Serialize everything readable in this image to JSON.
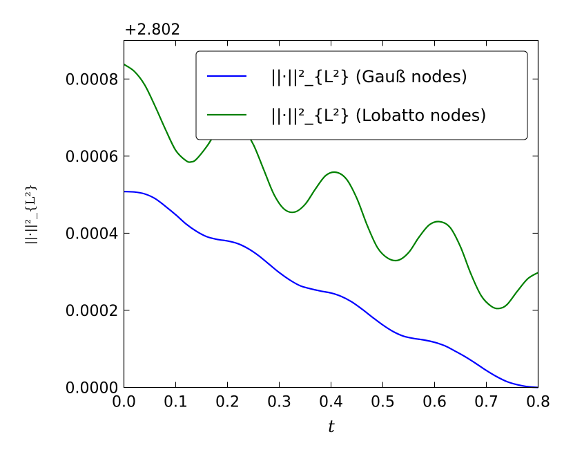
{
  "chart_data": {
    "type": "line",
    "offset_text": "+2.802",
    "xlabel": "t",
    "ylabel": "||·||²_{L²}",
    "xlim": [
      0.0,
      0.8
    ],
    "ylim": [
      0.0,
      0.0009
    ],
    "xticks": [
      "0.0",
      "0.1",
      "0.2",
      "0.3",
      "0.4",
      "0.5",
      "0.6",
      "0.7",
      "0.8"
    ],
    "yticks": [
      "0.0000",
      "0.0002",
      "0.0004",
      "0.0006",
      "0.0008"
    ],
    "legend_position": "upper right",
    "series": [
      {
        "name": "||·||²_{L²} (Gauß nodes)",
        "name_suffix": "(Gauß nodes)",
        "color": "#0000ff",
        "x": [
          0.0,
          0.02,
          0.04,
          0.06,
          0.08,
          0.1,
          0.12,
          0.14,
          0.16,
          0.18,
          0.2,
          0.22,
          0.24,
          0.26,
          0.28,
          0.3,
          0.32,
          0.34,
          0.36,
          0.38,
          0.4,
          0.42,
          0.44,
          0.46,
          0.48,
          0.5,
          0.52,
          0.54,
          0.56,
          0.58,
          0.6,
          0.62,
          0.64,
          0.66,
          0.68,
          0.7,
          0.72,
          0.74,
          0.76,
          0.78,
          0.8
        ],
        "y": [
          0.000508,
          0.000507,
          0.000502,
          0.00049,
          0.00047,
          0.000448,
          0.000424,
          0.000405,
          0.000391,
          0.000384,
          0.00038,
          0.000373,
          0.00036,
          0.000342,
          0.00032,
          0.000298,
          0.000279,
          0.000264,
          0.000256,
          0.00025,
          0.000245,
          0.000236,
          0.000222,
          0.000203,
          0.000182,
          0.000162,
          0.000145,
          0.000133,
          0.000127,
          0.000123,
          0.000117,
          0.000108,
          9.4e-05,
          7.9e-05,
          6.2e-05,
          4.4e-05,
          2.8e-05,
          1.5e-05,
          7e-06,
          2e-06,
          0.0
        ]
      },
      {
        "name": "||·||²_{L²} (Lobatto nodes)",
        "name_suffix": "(Lobatto nodes)",
        "color": "#008000",
        "x": [
          0.0,
          0.02,
          0.04,
          0.06,
          0.08,
          0.1,
          0.12,
          0.13,
          0.14,
          0.16,
          0.18,
          0.2,
          0.215,
          0.23,
          0.25,
          0.27,
          0.29,
          0.31,
          0.33,
          0.35,
          0.37,
          0.39,
          0.41,
          0.43,
          0.45,
          0.47,
          0.49,
          0.51,
          0.53,
          0.55,
          0.57,
          0.59,
          0.61,
          0.63,
          0.65,
          0.67,
          0.69,
          0.71,
          0.725,
          0.74,
          0.76,
          0.78,
          0.8
        ],
        "y": [
          0.000838,
          0.00082,
          0.000785,
          0.00073,
          0.00067,
          0.000615,
          0.000588,
          0.000585,
          0.000592,
          0.000625,
          0.000665,
          0.000685,
          0.000687,
          0.000672,
          0.00063,
          0.000565,
          0.0005,
          0.000462,
          0.000455,
          0.000475,
          0.000515,
          0.00055,
          0.000558,
          0.00054,
          0.00049,
          0.00042,
          0.000362,
          0.000335,
          0.00033,
          0.00035,
          0.00039,
          0.000422,
          0.00043,
          0.000415,
          0.000365,
          0.000295,
          0.000238,
          0.00021,
          0.000205,
          0.000215,
          0.00025,
          0.000282,
          0.000298
        ]
      }
    ]
  }
}
